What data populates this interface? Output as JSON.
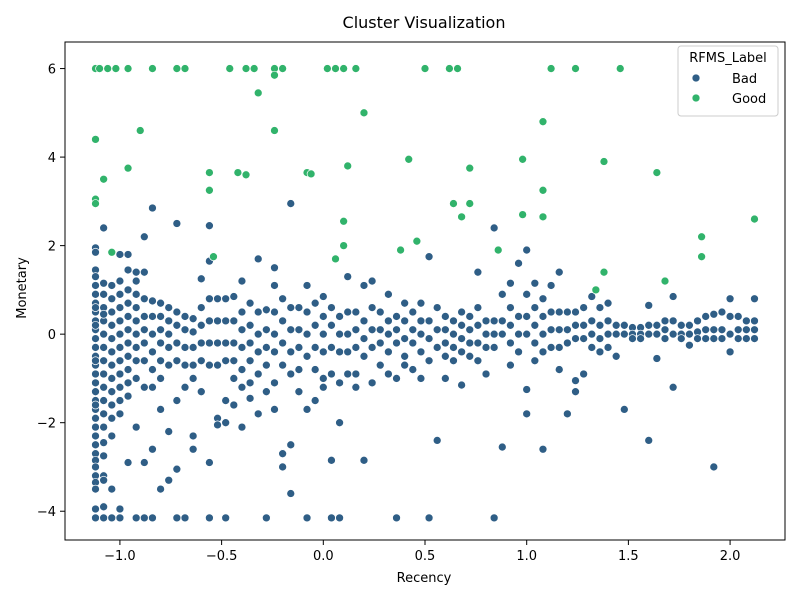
{
  "chart_data": {
    "type": "scatter",
    "title": "Cluster Visualization",
    "xlabel": "Recency",
    "ylabel": "Monetary",
    "xlim": [
      -1.27,
      2.27
    ],
    "ylim": [
      -4.65,
      6.6
    ],
    "xticks": [
      -1.0,
      -0.5,
      0.0,
      0.5,
      1.0,
      1.5,
      2.0
    ],
    "xtick_labels": [
      "−1.0",
      "−0.5",
      "0.0",
      "0.5",
      "1.0",
      "1.5",
      "2.0"
    ],
    "yticks": [
      -4,
      -2,
      0,
      2,
      4,
      6
    ],
    "ytick_labels": [
      "−4",
      "−2",
      "0",
      "2",
      "4",
      "6"
    ],
    "grid": false,
    "legend": {
      "title": "RFMS_Label",
      "position": "top-right",
      "entries": [
        "Bad",
        "Good"
      ]
    },
    "colors": {
      "Bad": "#2f5e86",
      "Good": "#31b36b"
    },
    "series": [
      {
        "name": "Bad",
        "color": "#2f5e86",
        "x": [
          -1.12,
          -1.12,
          -1.12,
          -1.12,
          -1.12,
          -1.12,
          -1.12,
          -1.12,
          -1.12,
          -1.12,
          -1.12,
          -1.12,
          -1.12,
          -1.12,
          -1.12,
          -1.12,
          -1.12,
          -1.12,
          -1.12,
          -1.12,
          -1.12,
          -1.12,
          -1.12,
          -1.12,
          -1.12,
          -1.12,
          -1.12,
          -1.12,
          -1.12,
          -1.12,
          -1.12,
          -1.12,
          -1.12,
          -1.12,
          -1.12,
          -1.08,
          -1.08,
          -1.08,
          -1.08,
          -1.08,
          -1.08,
          -1.08,
          -1.08,
          -1.08,
          -1.08,
          -1.08,
          -1.08,
          -1.08,
          -1.08,
          -1.08,
          -1.08,
          -1.08,
          -1.08,
          -1.08,
          -1.08,
          -1.04,
          -1.04,
          -1.04,
          -1.04,
          -1.04,
          -1.04,
          -1.04,
          -1.04,
          -1.04,
          -1.04,
          -1.04,
          -1.04,
          -1.04,
          -1.04,
          -1.0,
          -1.0,
          -1.0,
          -1.0,
          -1.0,
          -1.0,
          -1.0,
          -1.0,
          -1.0,
          -1.0,
          -1.0,
          -1.0,
          -1.0,
          -1.0,
          -0.96,
          -0.96,
          -0.96,
          -0.96,
          -0.96,
          -0.96,
          -0.96,
          -0.96,
          -0.96,
          -0.96,
          -0.96,
          -0.96,
          -0.92,
          -0.92,
          -0.92,
          -0.92,
          -0.92,
          -0.92,
          -0.92,
          -0.92,
          -0.92,
          -0.92,
          -0.92,
          -0.88,
          -0.88,
          -0.88,
          -0.88,
          -0.88,
          -0.88,
          -0.88,
          -0.88,
          -0.88,
          -0.88,
          -0.84,
          -0.84,
          -0.84,
          -0.84,
          -0.84,
          -0.84,
          -0.84,
          -0.84,
          -0.84,
          -0.8,
          -0.8,
          -0.8,
          -0.8,
          -0.8,
          -0.8,
          -0.8,
          -0.8,
          -0.76,
          -0.76,
          -0.76,
          -0.76,
          -0.76,
          -0.76,
          -0.76,
          -0.72,
          -0.72,
          -0.72,
          -0.72,
          -0.72,
          -0.72,
          -0.72,
          -0.72,
          -0.68,
          -0.68,
          -0.68,
          -0.68,
          -0.68,
          -0.68,
          -0.64,
          -0.64,
          -0.64,
          -0.64,
          -0.64,
          -0.64,
          -0.64,
          -0.6,
          -0.6,
          -0.6,
          -0.6,
          -0.6,
          -0.6,
          -0.56,
          -0.56,
          -0.56,
          -0.56,
          -0.56,
          -0.56,
          -0.56,
          -0.56,
          -0.52,
          -0.52,
          -0.52,
          -0.52,
          -0.52,
          -0.52,
          -0.48,
          -0.48,
          -0.48,
          -0.48,
          -0.48,
          -0.48,
          -0.48,
          -0.44,
          -0.44,
          -0.44,
          -0.44,
          -0.44,
          -0.44,
          -0.4,
          -0.4,
          -0.4,
          -0.4,
          -0.4,
          -0.4,
          -0.4,
          -0.36,
          -0.36,
          -0.36,
          -0.36,
          -0.36,
          -0.36,
          -0.32,
          -0.32,
          -0.32,
          -0.32,
          -0.32,
          -0.32,
          -0.28,
          -0.28,
          -0.28,
          -0.28,
          -0.28,
          -0.28,
          -0.24,
          -0.24,
          -0.24,
          -0.24,
          -0.24,
          -0.24,
          -0.24,
          -0.2,
          -0.2,
          -0.2,
          -0.2,
          -0.2,
          -0.2,
          -0.16,
          -0.16,
          -0.16,
          -0.16,
          -0.16,
          -0.16,
          -0.16,
          -0.12,
          -0.12,
          -0.12,
          -0.12,
          -0.12,
          -0.08,
          -0.08,
          -0.08,
          -0.08,
          -0.08,
          -0.08,
          -0.04,
          -0.04,
          -0.04,
          -0.04,
          -0.04,
          0.0,
          0.0,
          0.0,
          0.0,
          0.0,
          0.0,
          0.04,
          0.04,
          0.04,
          0.04,
          0.04,
          0.04,
          0.08,
          0.08,
          0.08,
          0.08,
          0.08,
          0.08,
          0.12,
          0.12,
          0.12,
          0.12,
          0.12,
          0.16,
          0.16,
          0.16,
          0.16,
          0.16,
          0.2,
          0.2,
          0.2,
          0.2,
          0.2,
          0.24,
          0.24,
          0.24,
          0.24,
          0.24,
          0.28,
          0.28,
          0.28,
          0.28,
          0.32,
          0.32,
          0.32,
          0.32,
          0.32,
          0.36,
          0.36,
          0.36,
          0.36,
          0.36,
          0.4,
          0.4,
          0.4,
          0.4,
          0.4,
          0.44,
          0.44,
          0.44,
          0.44,
          0.48,
          0.48,
          0.48,
          0.48,
          0.48,
          0.52,
          0.52,
          0.52,
          0.52,
          0.52,
          0.56,
          0.56,
          0.56,
          0.56,
          0.6,
          0.6,
          0.6,
          0.6,
          0.6,
          0.64,
          0.64,
          0.64,
          0.64,
          0.68,
          0.68,
          0.68,
          0.68,
          0.68,
          0.72,
          0.72,
          0.72,
          0.72,
          0.76,
          0.76,
          0.76,
          0.76,
          0.76,
          0.8,
          0.8,
          0.8,
          0.8,
          0.84,
          0.84,
          0.84,
          0.84,
          0.84,
          0.88,
          0.88,
          0.88,
          0.88,
          0.92,
          0.92,
          0.92,
          0.92,
          0.92,
          0.96,
          0.96,
          0.96,
          0.96,
          1.0,
          1.0,
          1.0,
          1.0,
          1.0,
          1.0,
          1.04,
          1.04,
          1.04,
          1.04,
          1.04,
          1.08,
          1.08,
          1.08,
          1.08,
          1.08,
          1.12,
          1.12,
          1.12,
          1.12,
          1.16,
          1.16,
          1.16,
          1.16,
          1.16,
          1.2,
          1.2,
          1.2,
          1.2,
          1.24,
          1.24,
          1.24,
          1.24,
          1.24,
          1.28,
          1.28,
          1.28,
          1.28,
          1.32,
          1.32,
          1.32,
          1.32,
          1.36,
          1.36,
          1.36,
          1.36,
          1.4,
          1.4,
          1.4,
          1.4,
          1.44,
          1.44,
          1.44,
          1.48,
          1.48,
          1.48,
          1.52,
          1.52,
          1.52,
          1.56,
          1.56,
          1.56,
          1.6,
          1.6,
          1.6,
          1.6,
          1.64,
          1.64,
          1.64,
          1.68,
          1.68,
          1.68,
          1.72,
          1.72,
          1.72,
          1.72,
          1.76,
          1.76,
          1.76,
          1.8,
          1.8,
          1.8,
          1.84,
          1.84,
          1.84,
          1.88,
          1.88,
          1.88,
          1.92,
          1.92,
          1.92,
          1.92,
          1.96,
          1.96,
          1.96,
          2.0,
          2.0,
          2.0,
          2.0,
          2.04,
          2.04,
          2.04,
          2.08,
          2.08,
          2.08,
          2.12,
          2.12,
          2.12,
          2.12
        ],
        "y": [
          1.95,
          1.85,
          1.45,
          1.3,
          1.1,
          0.9,
          0.7,
          0.5,
          0.3,
          0.1,
          -0.1,
          -0.3,
          -0.5,
          -0.7,
          -0.9,
          -1.1,
          -1.3,
          -1.5,
          -1.7,
          -1.9,
          -2.1,
          -2.3,
          -2.5,
          -2.7,
          -2.85,
          -3.0,
          -3.2,
          -3.35,
          -3.5,
          -3.95,
          -4.15,
          0.6,
          0.2,
          -0.6,
          -1.6,
          2.4,
          1.15,
          0.9,
          0.6,
          0.3,
          0.0,
          -0.3,
          -0.6,
          -0.9,
          -1.2,
          -1.5,
          -1.8,
          -2.1,
          -2.45,
          -2.75,
          -3.2,
          -3.3,
          -3.9,
          -4.15,
          0.45,
          1.1,
          0.8,
          0.5,
          0.2,
          -0.1,
          -0.4,
          -0.7,
          -1.0,
          -1.3,
          -1.6,
          -1.9,
          -2.3,
          -3.5,
          -4.15,
          1.8,
          1.2,
          0.9,
          0.6,
          0.3,
          0.0,
          -0.3,
          -0.6,
          -0.9,
          -1.2,
          -1.5,
          -1.8,
          -3.95,
          -4.15,
          1.8,
          1.45,
          1.0,
          0.7,
          0.4,
          0.1,
          -0.2,
          -0.5,
          -0.8,
          -1.1,
          -1.4,
          -2.9,
          1.4,
          1.2,
          0.9,
          0.6,
          0.3,
          0.0,
          -0.3,
          -0.6,
          -1.0,
          -2.1,
          -4.15,
          2.2,
          1.4,
          0.8,
          0.4,
          0.1,
          -0.2,
          -0.6,
          -1.2,
          -2.9,
          -4.15,
          2.85,
          0.75,
          0.4,
          0.0,
          -0.4,
          -0.8,
          -1.2,
          -2.6,
          -4.15,
          0.7,
          0.4,
          0.1,
          -0.2,
          -0.6,
          -1.0,
          -1.7,
          -3.5,
          0.6,
          0.3,
          0.0,
          -0.3,
          -0.7,
          -2.2,
          -3.3,
          2.5,
          0.5,
          0.2,
          -0.2,
          -0.6,
          -1.5,
          -3.05,
          -4.15,
          0.4,
          0.1,
          -0.3,
          -0.7,
          -1.2,
          -4.15,
          0.35,
          0.05,
          -0.3,
          -0.7,
          -1.0,
          -2.3,
          -2.6,
          1.25,
          0.6,
          0.2,
          -0.2,
          -0.6,
          -1.3,
          2.45,
          1.65,
          0.8,
          0.3,
          -0.2,
          -0.7,
          -2.9,
          -4.15,
          0.8,
          0.3,
          -0.2,
          -0.7,
          -1.9,
          -2.05,
          0.8,
          0.3,
          -0.2,
          -0.6,
          -1.5,
          -2.0,
          -4.15,
          0.85,
          0.3,
          -0.2,
          -0.6,
          -1.0,
          -1.6,
          1.2,
          0.5,
          0.1,
          -0.3,
          -0.8,
          -1.2,
          -2.1,
          0.7,
          0.2,
          -0.2,
          -0.6,
          -1.1,
          -1.45,
          1.7,
          0.5,
          0.0,
          -0.4,
          -0.9,
          -1.8,
          0.55,
          0.1,
          -0.3,
          -0.7,
          -1.3,
          -4.15,
          1.5,
          1.1,
          0.5,
          0.0,
          -0.4,
          -1.1,
          -1.7,
          0.8,
          0.3,
          -0.2,
          -0.7,
          -2.7,
          -3.0,
          2.95,
          0.6,
          0.1,
          -0.4,
          -0.9,
          -2.5,
          -3.6,
          0.6,
          0.1,
          -0.3,
          -0.8,
          -1.3,
          1.1,
          0.5,
          0.0,
          -0.5,
          -1.7,
          -4.15,
          0.7,
          0.2,
          -0.3,
          -0.8,
          -1.5,
          0.85,
          0.4,
          0.0,
          -0.4,
          -1.0,
          -1.2,
          0.6,
          0.2,
          -0.3,
          -0.9,
          -2.85,
          -4.15,
          0.4,
          0.0,
          -0.4,
          -1.1,
          -2.0,
          -4.15,
          1.3,
          0.5,
          0.0,
          -0.4,
          -0.9,
          0.5,
          0.1,
          -0.3,
          -0.9,
          -1.2,
          1.1,
          0.3,
          -0.1,
          -0.5,
          -2.85,
          1.2,
          0.6,
          0.1,
          -0.3,
          -1.1,
          0.5,
          0.1,
          -0.2,
          -0.7,
          0.9,
          0.3,
          0.0,
          -0.4,
          -0.9,
          0.4,
          0.1,
          -0.2,
          -1.0,
          -4.15,
          0.7,
          0.3,
          -0.1,
          -0.5,
          -0.7,
          0.5,
          0.1,
          -0.2,
          -0.8,
          0.7,
          0.3,
          0.0,
          -0.4,
          -1.0,
          1.75,
          0.3,
          -0.1,
          -0.6,
          -4.15,
          0.6,
          0.1,
          -0.3,
          -2.4,
          0.4,
          0.1,
          -0.2,
          -0.5,
          -1.0,
          0.3,
          0.0,
          -0.3,
          -0.6,
          0.5,
          0.2,
          -0.1,
          -0.4,
          -1.15,
          0.4,
          0.1,
          -0.2,
          -0.5,
          1.4,
          0.6,
          0.2,
          -0.2,
          -0.6,
          0.3,
          0.0,
          -0.3,
          -0.9,
          2.4,
          0.3,
          0.0,
          -0.3,
          -4.15,
          0.9,
          0.3,
          0.0,
          -2.55,
          1.15,
          0.6,
          0.2,
          -0.2,
          -0.7,
          1.6,
          0.4,
          0.0,
          -0.4,
          1.9,
          0.9,
          0.4,
          0.0,
          -1.25,
          -1.8,
          1.15,
          0.6,
          0.2,
          -0.2,
          -0.6,
          0.8,
          0.4,
          0.0,
          -0.4,
          -2.6,
          1.1,
          0.5,
          0.1,
          -0.3,
          1.4,
          0.5,
          0.1,
          -0.3,
          -0.8,
          0.5,
          0.1,
          -0.2,
          -1.8,
          0.5,
          0.2,
          -0.1,
          -1.05,
          -1.3,
          0.6,
          0.2,
          -0.1,
          -0.9,
          0.85,
          0.3,
          0.0,
          -0.3,
          0.6,
          0.2,
          -0.1,
          -0.4,
          0.7,
          0.3,
          0.0,
          -0.3,
          0.2,
          0.0,
          -0.5,
          0.2,
          0.0,
          -1.7,
          0.15,
          0.0,
          -0.1,
          0.15,
          0.0,
          -0.1,
          0.65,
          0.2,
          0.0,
          -2.4,
          0.2,
          0.0,
          -0.55,
          0.3,
          0.1,
          -0.1,
          0.85,
          0.3,
          0.0,
          -1.2,
          0.2,
          0.0,
          -0.1,
          0.2,
          0.0,
          -0.25,
          0.3,
          0.05,
          -0.1,
          0.4,
          0.1,
          -0.1,
          0.45,
          0.1,
          -0.1,
          -3.0,
          0.5,
          0.1,
          -0.1,
          0.8,
          0.4,
          0.0,
          -0.4,
          0.4,
          0.1,
          -0.1,
          0.3,
          0.1,
          -0.1,
          0.8,
          0.3,
          0.1,
          -0.1
        ]
      },
      {
        "name": "Good",
        "color": "#31b36b",
        "x": [
          -1.12,
          -1.1,
          -1.06,
          -1.02,
          -0.96,
          -0.84,
          -0.72,
          -0.68,
          -0.46,
          -0.38,
          -0.34,
          -0.24,
          -0.2,
          0.02,
          0.06,
          0.1,
          0.16,
          0.5,
          0.62,
          0.66,
          1.12,
          1.24,
          1.46,
          -1.12,
          -1.12,
          -1.12,
          -1.08,
          -1.04,
          -0.96,
          -0.9,
          -0.56,
          -0.56,
          -0.54,
          -0.42,
          -0.38,
          -0.32,
          -0.24,
          -0.24,
          -0.08,
          -0.06,
          0.06,
          0.1,
          0.1,
          0.12,
          0.2,
          0.38,
          0.42,
          0.46,
          0.64,
          0.68,
          0.72,
          0.72,
          0.86,
          0.98,
          0.98,
          1.08,
          1.08,
          1.08,
          1.34,
          1.38,
          1.38,
          1.64,
          1.68,
          1.86,
          1.86,
          2.12
        ],
        "y": [
          6.0,
          6.0,
          6.0,
          6.0,
          6.0,
          6.0,
          6.0,
          6.0,
          6.0,
          6.0,
          6.0,
          6.0,
          6.0,
          6.0,
          6.0,
          6.0,
          6.0,
          6.0,
          6.0,
          6.0,
          6.0,
          6.0,
          6.0,
          4.4,
          3.05,
          2.95,
          3.5,
          1.85,
          3.75,
          4.6,
          3.65,
          3.25,
          1.75,
          3.65,
          3.6,
          5.45,
          4.6,
          5.85,
          3.65,
          3.62,
          1.7,
          2.55,
          2.0,
          3.8,
          5.0,
          1.9,
          3.95,
          2.1,
          2.95,
          2.65,
          2.95,
          3.75,
          1.9,
          3.95,
          2.7,
          4.8,
          3.25,
          2.65,
          1.0,
          3.9,
          1.4,
          3.65,
          1.2,
          2.2,
          1.75,
          2.6
        ]
      }
    ]
  }
}
